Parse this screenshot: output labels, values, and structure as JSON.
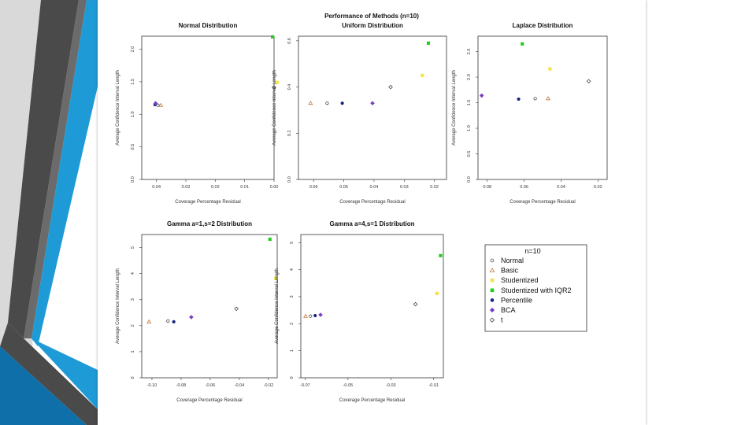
{
  "slide": {
    "background_colors": {
      "dark": "#4a4a4a",
      "mid": "#6b6b6b",
      "blue": "#1e9bd7",
      "blue_dark": "#0f6fa8",
      "light": "#d9d9d9"
    }
  },
  "figure_title": "Performance of Methods (n=10)",
  "legend": {
    "title": "n=10",
    "entries": [
      {
        "label": "Normal",
        "symbol": "circle",
        "color": "#333333",
        "filled": false
      },
      {
        "label": "Basic",
        "symbol": "triangle",
        "color": "#b5651d",
        "filled": false
      },
      {
        "label": "Studentized",
        "symbol": "square",
        "color": "#f3e24a",
        "filled": true
      },
      {
        "label": "Studentized with IQR2",
        "symbol": "square",
        "color": "#22cc22",
        "filled": true
      },
      {
        "label": "Percentile",
        "symbol": "circle",
        "color": "#1a237e",
        "filled": true
      },
      {
        "label": "BCA",
        "symbol": "diamond",
        "color": "#7a3fbf",
        "filled": true
      },
      {
        "label": "t",
        "symbol": "diamond",
        "color": "#333333",
        "filled": false
      }
    ]
  },
  "chart_data": [
    {
      "type": "scatter",
      "title": "Normal Distribution",
      "xlabel": "Coverage Percentage Residual",
      "ylabel": "Average Confidence Interval Length",
      "xlim": [
        -0.045,
        0.0
      ],
      "ylim": [
        0.0,
        2.2
      ],
      "xticks": [
        -0.04,
        -0.03,
        -0.02,
        -0.01,
        0.0
      ],
      "xtick_labels": [
        "0.04",
        "0.03",
        "0.02",
        "0.01",
        "0.00"
      ],
      "yticks": [
        0.0,
        0.5,
        1.0,
        1.5,
        2.0
      ],
      "ytick_labels": [
        "0.0",
        "0.5",
        "1.0",
        "1.5",
        "2.0"
      ],
      "points": [
        {
          "method": "Normal",
          "x": -0.0395,
          "y": 1.14
        },
        {
          "method": "Basic",
          "x": -0.0385,
          "y": 1.14
        },
        {
          "method": "Percentile",
          "x": -0.0405,
          "y": 1.15
        },
        {
          "method": "BCA",
          "x": -0.0403,
          "y": 1.17
        },
        {
          "method": "Studentized",
          "x": 0.001,
          "y": 1.49
        },
        {
          "method": "Studentized with IQR2",
          "x": -0.0005,
          "y": 2.19
        },
        {
          "method": "t",
          "x": 0.0,
          "y": 1.41
        }
      ]
    },
    {
      "type": "scatter",
      "title": "Uniform Distribution",
      "xlabel": "Coverage Percentage Residual",
      "ylabel": "Average Confidence Interval Length",
      "xlim": [
        -0.065,
        -0.016
      ],
      "ylim": [
        0.0,
        0.62
      ],
      "xticks": [
        -0.06,
        -0.05,
        -0.04,
        -0.03,
        -0.02
      ],
      "xtick_labels": [
        "0.06",
        "0.05",
        "0.04",
        "0.03",
        "0.02"
      ],
      "yticks": [
        0.0,
        0.2,
        0.4,
        0.6
      ],
      "ytick_labels": [
        "0.0",
        "0.2",
        "0.4",
        "0.6"
      ],
      "points": [
        {
          "method": "Basic",
          "x": -0.061,
          "y": 0.33
        },
        {
          "method": "Normal",
          "x": -0.0555,
          "y": 0.33
        },
        {
          "method": "Percentile",
          "x": -0.0505,
          "y": 0.33
        },
        {
          "method": "BCA",
          "x": -0.0405,
          "y": 0.33
        },
        {
          "method": "t",
          "x": -0.0345,
          "y": 0.4
        },
        {
          "method": "Studentized",
          "x": -0.024,
          "y": 0.45
        },
        {
          "method": "Studentized with IQR2",
          "x": -0.022,
          "y": 0.59
        }
      ]
    },
    {
      "type": "scatter",
      "title": "Laplace Distribution",
      "xlabel": "Coverage Percentage Residual",
      "ylabel": "Average Confidence Interval Length",
      "xlim": [
        -0.085,
        -0.015
      ],
      "ylim": [
        0.0,
        2.8
      ],
      "xticks": [
        -0.08,
        -0.06,
        -0.04,
        -0.02
      ],
      "xtick_labels": [
        "0.08",
        "0.06",
        "0.04",
        "0.02"
      ],
      "yticks": [
        0.0,
        0.5,
        1.0,
        1.5,
        2.0,
        2.5
      ],
      "ytick_labels": [
        "0.0",
        "0.5",
        "1.0",
        "1.5",
        "2.0",
        "2.5"
      ],
      "points": [
        {
          "method": "BCA",
          "x": -0.083,
          "y": 1.64
        },
        {
          "method": "Percentile",
          "x": -0.063,
          "y": 1.57
        },
        {
          "method": "Studentized with IQR2",
          "x": -0.061,
          "y": 2.65
        },
        {
          "method": "Normal",
          "x": -0.054,
          "y": 1.58
        },
        {
          "method": "Basic",
          "x": -0.047,
          "y": 1.58
        },
        {
          "method": "Studentized",
          "x": -0.046,
          "y": 2.16
        },
        {
          "method": "t",
          "x": -0.025,
          "y": 1.92
        }
      ]
    },
    {
      "type": "scatter",
      "title": "Gamma a=1,s=2 Distribution",
      "xlabel": "Coverage Percentage Residual",
      "ylabel": "Average Confidence Interval Length",
      "xlim": [
        -0.107,
        -0.014
      ],
      "ylim": [
        0.0,
        5.5
      ],
      "xticks": [
        -0.1,
        -0.08,
        -0.06,
        -0.04,
        -0.02
      ],
      "xtick_labels": [
        "-0.10",
        "-0.08",
        "-0.06",
        "-0.04",
        "-0.02"
      ],
      "yticks": [
        0,
        1,
        2,
        3,
        4,
        5
      ],
      "ytick_labels": [
        "0",
        "1",
        "2",
        "3",
        "4",
        "5"
      ],
      "points": [
        {
          "method": "Basic",
          "x": -0.102,
          "y": 2.15
        },
        {
          "method": "Normal",
          "x": -0.089,
          "y": 2.18
        },
        {
          "method": "Percentile",
          "x": -0.085,
          "y": 2.15
        },
        {
          "method": "BCA",
          "x": -0.073,
          "y": 2.33
        },
        {
          "method": "t",
          "x": -0.042,
          "y": 2.65
        },
        {
          "method": "Studentized with IQR2",
          "x": -0.019,
          "y": 5.32
        },
        {
          "method": "Studentized",
          "x": -0.015,
          "y": 3.82
        }
      ]
    },
    {
      "type": "scatter",
      "title": "Gamma a=4,s=1 Distribution",
      "xlabel": "Coverage Percentage Residual",
      "ylabel": "Average Confidence Interval Length",
      "xlim": [
        -0.072,
        -0.0055
      ],
      "ylim": [
        0.0,
        5.3
      ],
      "xticks": [
        -0.07,
        -0.05,
        -0.03,
        -0.01
      ],
      "xtick_labels": [
        "-0.07",
        "-0.05",
        "-0.03",
        "-0.01"
      ],
      "yticks": [
        0,
        1,
        2,
        3,
        4,
        5
      ],
      "ytick_labels": [
        "0",
        "1",
        "2",
        "3",
        "4",
        "5"
      ],
      "points": [
        {
          "method": "Basic",
          "x": -0.0698,
          "y": 2.28
        },
        {
          "method": "Normal",
          "x": -0.0675,
          "y": 2.28
        },
        {
          "method": "Percentile",
          "x": -0.0653,
          "y": 2.3
        },
        {
          "method": "BCA",
          "x": -0.0628,
          "y": 2.33
        },
        {
          "method": "t",
          "x": -0.0185,
          "y": 2.72
        },
        {
          "method": "Studentized",
          "x": -0.0085,
          "y": 3.12
        },
        {
          "method": "Studentized with IQR2",
          "x": -0.0068,
          "y": 4.52
        }
      ]
    }
  ]
}
